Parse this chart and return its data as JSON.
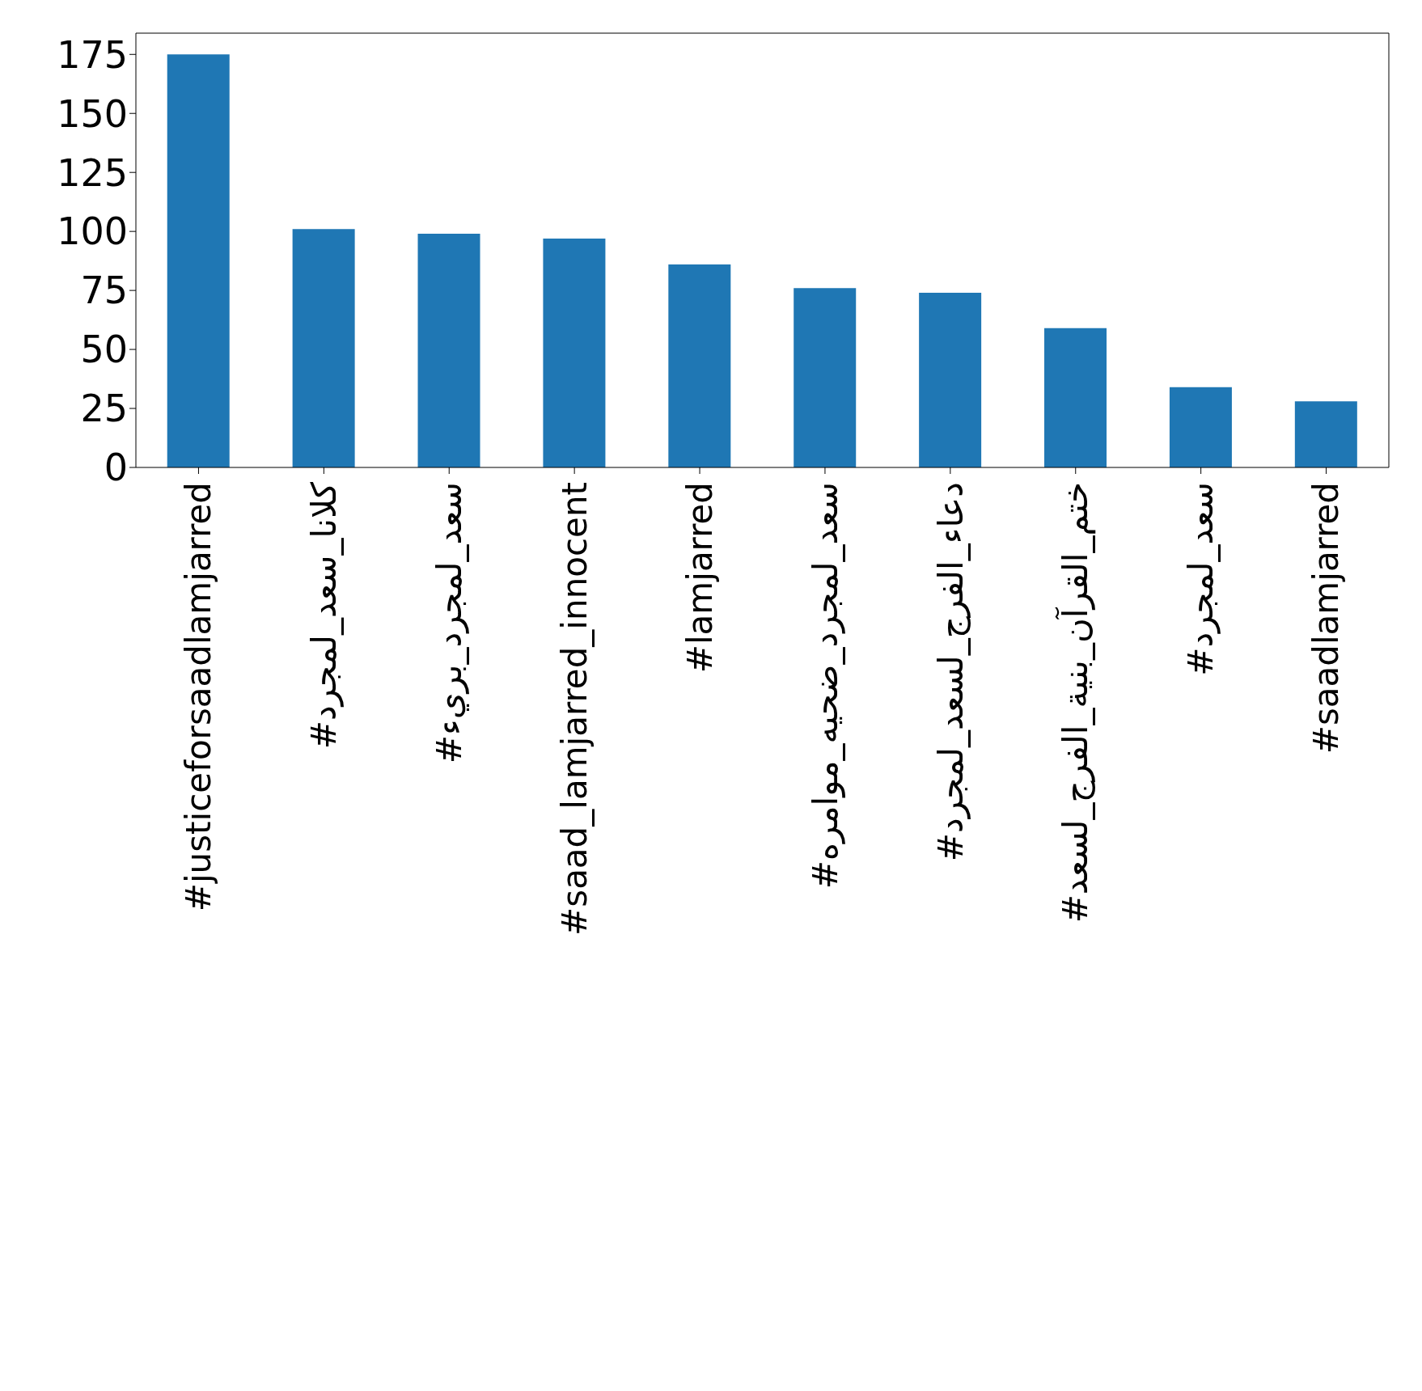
{
  "chart_data": {
    "type": "bar",
    "categories": [
      "#justiceforsaadlamjarred",
      "#كلانا_سعد_لمجرد",
      "#سعد_لمجرد_بريء",
      "#saad_lamjarred_innocent",
      "#lamjarred",
      "#سعد_لمجرد_ضحيه_موامره",
      "#دعاء_الفرج_لسعد_لمجرد",
      "#ختم_القرآن_بنية_الفرج_لسعد",
      "#سعد_لمجرد",
      "#saadlamjarred"
    ],
    "values": [
      175,
      101,
      99,
      97,
      86,
      76,
      74,
      59,
      34,
      28
    ],
    "color": "#1f77b4",
    "ylim": [
      0,
      184
    ],
    "yticks": [
      0,
      25,
      50,
      75,
      100,
      125,
      150,
      175
    ],
    "grid": false,
    "legend": false
  }
}
